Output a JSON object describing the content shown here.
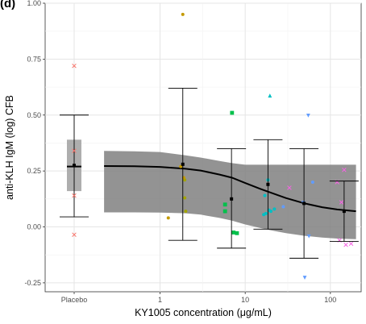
{
  "panel_label": "(d)",
  "chart_data": {
    "type": "scatter",
    "title": "",
    "xlabel": "KY1005 concentration (μg/mL)",
    "ylabel": "anti-KLH IgM (log) CFB",
    "x_scale": "log10",
    "ylim": [
      -0.29,
      1.0
    ],
    "y_ticks": [
      -0.25,
      0.0,
      0.25,
      0.5,
      0.75,
      1.0
    ],
    "y_tick_labels": [
      "-0.25",
      "0.00",
      "0.25",
      "0.50",
      "0.75",
      "1.00"
    ],
    "x_tick_labels": [
      "Placebo",
      "1",
      "10",
      "100"
    ],
    "x_ticks": [
      1,
      10,
      100
    ],
    "grid": true,
    "legend": "none",
    "placebo": {
      "median": 0.27,
      "q1": 0.16,
      "q3": 0.39,
      "mean": 0.275,
      "ci_low": 0.045,
      "ci_high": 0.5,
      "points": [
        {
          "y": 0.72,
          "color": "#f8766d",
          "shape": "x"
        },
        {
          "y": 0.34,
          "color": "#f8766d",
          "shape": "x"
        },
        {
          "y": 0.14,
          "color": "#f8766d",
          "shape": "x"
        },
        {
          "y": -0.035,
          "color": "#f8766d",
          "shape": "x"
        }
      ]
    },
    "model_fit": {
      "x": [
        0.22,
        0.5,
        1,
        2,
        3,
        5,
        7,
        10,
        15,
        20,
        30,
        50,
        80,
        120,
        200
      ],
      "median": [
        0.272,
        0.271,
        0.268,
        0.26,
        0.252,
        0.234,
        0.22,
        0.196,
        0.17,
        0.153,
        0.129,
        0.105,
        0.088,
        0.078,
        0.07
      ],
      "lower": [
        0.065,
        0.065,
        0.064,
        0.061,
        0.055,
        0.04,
        0.028,
        0.011,
        -0.005,
        -0.015,
        -0.028,
        -0.04,
        -0.048,
        -0.052,
        -0.055
      ],
      "upper": [
        0.34,
        0.338,
        0.335,
        0.32,
        0.31,
        0.295,
        0.285,
        0.278,
        0.278,
        0.278,
        0.278,
        0.278,
        0.278,
        0.278,
        0.278
      ],
      "fill_color": "#808080",
      "line_color": "#000000"
    },
    "bins": [
      {
        "x": 1.85,
        "mean": 0.28,
        "ci_low": -0.06,
        "ci_high": 0.62
      },
      {
        "x": 6.9,
        "mean": 0.125,
        "ci_low": -0.095,
        "ci_high": 0.35
      },
      {
        "x": 18.5,
        "mean": 0.19,
        "ci_low": -0.01,
        "ci_high": 0.39
      },
      {
        "x": 49,
        "mean": 0.105,
        "ci_low": -0.14,
        "ci_high": 0.35
      },
      {
        "x": 145,
        "mean": 0.07,
        "ci_low": -0.065,
        "ci_high": 0.205
      }
    ],
    "points": [
      {
        "x": 1.85,
        "y": 0.95,
        "color": "#c49a00",
        "shape": "circle"
      },
      {
        "x": 1.25,
        "y": 0.04,
        "color": "#c49a00",
        "shape": "circle"
      },
      {
        "x": 1.75,
        "y": 0.27,
        "color": "#c49a00",
        "shape": "circle"
      },
      {
        "x": 1.95,
        "y": 0.21,
        "color": "#a3a500",
        "shape": "circle"
      },
      {
        "x": 1.95,
        "y": 0.13,
        "color": "#a3a500",
        "shape": "circle"
      },
      {
        "x": 2.0,
        "y": 0.07,
        "color": "#a3a500",
        "shape": "circle"
      },
      {
        "x": 1.9,
        "y": 0.22,
        "color": "#c49a00",
        "shape": "circle"
      },
      {
        "x": 7.0,
        "y": 0.51,
        "color": "#00c04b",
        "shape": "square"
      },
      {
        "x": 5.8,
        "y": 0.1,
        "color": "#00c04b",
        "shape": "square"
      },
      {
        "x": 5.8,
        "y": 0.07,
        "color": "#00c04b",
        "shape": "square"
      },
      {
        "x": 7.3,
        "y": -0.025,
        "color": "#00c04b",
        "shape": "square"
      },
      {
        "x": 8.0,
        "y": -0.028,
        "color": "#00c04b",
        "shape": "square"
      },
      {
        "x": 19.5,
        "y": 0.585,
        "color": "#00bfc4",
        "shape": "triangle"
      },
      {
        "x": 17.0,
        "y": 0.14,
        "color": "#00bfc4",
        "shape": "circle"
      },
      {
        "x": 17.5,
        "y": 0.06,
        "color": "#00bfc4",
        "shape": "circle"
      },
      {
        "x": 19.0,
        "y": 0.075,
        "color": "#00bfc4",
        "shape": "circle"
      },
      {
        "x": 20.0,
        "y": 0.07,
        "color": "#00bfc4",
        "shape": "circle"
      },
      {
        "x": 22.0,
        "y": 0.08,
        "color": "#00bfc4",
        "shape": "circle"
      },
      {
        "x": 16.5,
        "y": 0.055,
        "color": "#00bfc4",
        "shape": "circle"
      },
      {
        "x": 18.5,
        "y": 0.21,
        "color": "#00bfc4",
        "shape": "circle"
      },
      {
        "x": 28.0,
        "y": 0.09,
        "color": "#619cff",
        "shape": "circle"
      },
      {
        "x": 33.0,
        "y": 0.175,
        "color": "#f564e3",
        "shape": "x"
      },
      {
        "x": 55.0,
        "y": 0.5,
        "color": "#619cff",
        "shape": "triangle-down"
      },
      {
        "x": 62.0,
        "y": 0.2,
        "color": "#619cff",
        "shape": "circle"
      },
      {
        "x": 48.0,
        "y": 0.11,
        "color": "#619cff",
        "shape": "triangle-down"
      },
      {
        "x": 56.0,
        "y": -0.04,
        "color": "#619cff",
        "shape": "triangle-down"
      },
      {
        "x": 50.0,
        "y": -0.225,
        "color": "#619cff",
        "shape": "triangle-down"
      },
      {
        "x": 145.0,
        "y": 0.255,
        "color": "#f564e3",
        "shape": "x"
      },
      {
        "x": 120.0,
        "y": 0.2,
        "color": "#f564e3",
        "shape": "x"
      },
      {
        "x": 135.0,
        "y": 0.11,
        "color": "#f564e3",
        "shape": "x"
      },
      {
        "x": 152.0,
        "y": -0.08,
        "color": "#f564e3",
        "shape": "x"
      },
      {
        "x": 175.0,
        "y": -0.075,
        "color": "#f564e3",
        "shape": "x"
      },
      {
        "x": 128.0,
        "y": -0.06,
        "color": "#f564e3",
        "shape": "x"
      }
    ]
  }
}
